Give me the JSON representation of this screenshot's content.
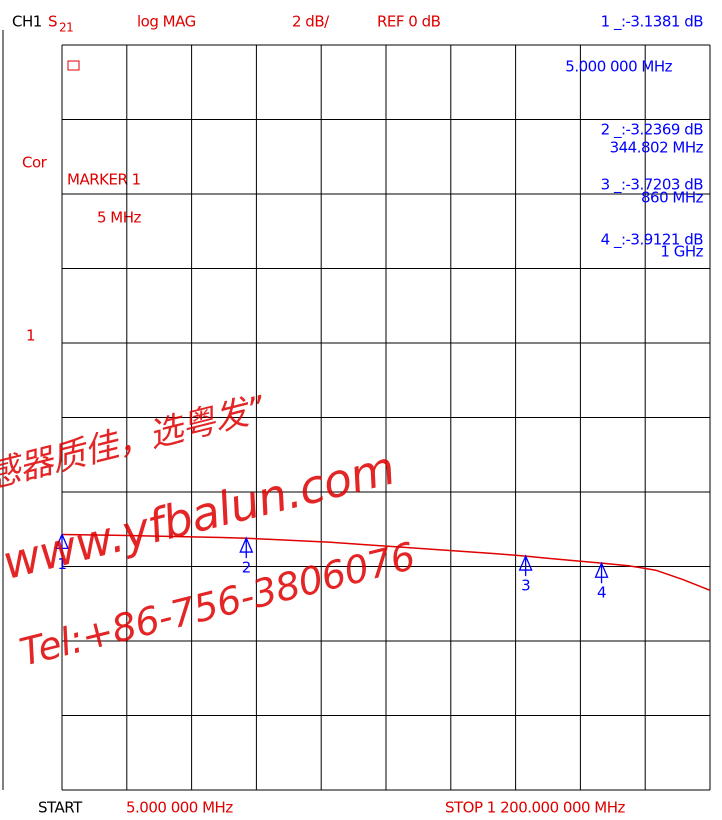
{
  "chart_data": {
    "type": "line",
    "channel": "CH1",
    "parameter": "S",
    "parameter_sub": "21",
    "format": "log MAG",
    "scale": "2 dB/",
    "reference": "REF 0 dB",
    "correction": "Cor",
    "ref_indicator": "1",
    "active_marker": "MARKER 1",
    "active_marker_freq": "5 MHz",
    "start_label": "START",
    "start": "5.000 000 MHz",
    "stop": "STOP 1 200.000 000 MHz",
    "watermark": [
      "感器质佳，选粤发”",
      "www.yfbalun.com",
      "Tel:+86-756-3806076"
    ],
    "color": "#e00000",
    "x": [
      5,
      100,
      200,
      300,
      344.802,
      400,
      500,
      600,
      700,
      800,
      860,
      900,
      1000,
      1050,
      1100,
      1150,
      1200
    ],
    "values": [
      -3.14,
      -3.16,
      -3.19,
      -3.22,
      -3.24,
      -3.28,
      -3.35,
      -3.45,
      -3.55,
      -3.65,
      -3.72,
      -3.78,
      -3.91,
      -3.98,
      -4.1,
      -4.35,
      -4.64
    ],
    "xlim": [
      5,
      1200
    ],
    "ylim": [
      -10,
      10
    ],
    "xticks": [
      5,
      124.5,
      244,
      363.5,
      483,
      602.5,
      722,
      841.5,
      961,
      1080.5,
      1200
    ],
    "yticks": [
      -10,
      -8,
      -6,
      -4,
      -2,
      0,
      2,
      4,
      6,
      8,
      10
    ],
    "grid": true,
    "markers": [
      {
        "name": "1",
        "x": 5,
        "value": -3.1381,
        "value_label": "1 _:-3.1381 dB",
        "x_label": "5.000 000 MHz"
      },
      {
        "name": "2",
        "x": 344.802,
        "value": -3.2369,
        "value_label": "2 _:-3.2369 dB",
        "x_label": "344.802 MHz"
      },
      {
        "name": "3",
        "x": 860,
        "value": -3.7203,
        "value_label": "3 _:-3.7203 dB",
        "x_label": "860 MHz"
      },
      {
        "name": "4",
        "x": 1000,
        "value": -3.9121,
        "value_label": "4 _:-3.9121 dB",
        "x_label": "1 GHz"
      }
    ]
  }
}
